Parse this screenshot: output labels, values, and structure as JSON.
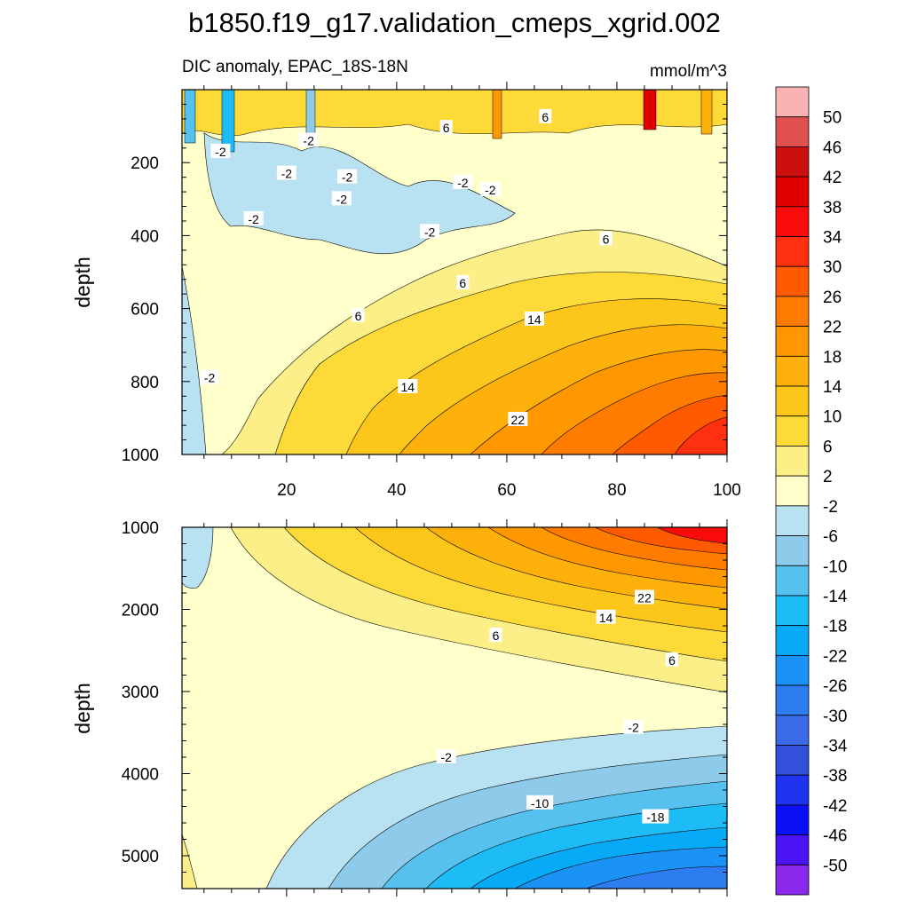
{
  "chart_data": {
    "type": "heatmap",
    "title": "b1850.f19_g17.validation_cmeps_xgrid.002",
    "colorbar": {
      "labels": [
        "50",
        "46",
        "42",
        "38",
        "34",
        "30",
        "26",
        "22",
        "18",
        "14",
        "10",
        "6",
        "2",
        "-2",
        "-6",
        "-10",
        "-14",
        "-18",
        "-22",
        "-26",
        "-30",
        "-34",
        "-38",
        "-42",
        "-46",
        "-50"
      ],
      "colors": [
        "#fbb2b2",
        "#e05050",
        "#cc1010",
        "#e00000",
        "#fa0c0c",
        "#ff3010",
        "#ff5a00",
        "#ff7c00",
        "#ff9800",
        "#fdb10a",
        "#fdc61a",
        "#fdda38",
        "#fdef88",
        "#ffffcc",
        "#b8e2f2",
        "#8ecbea",
        "#56c0ee",
        "#1ebcf6",
        "#06aaf6",
        "#1a92f6",
        "#2d7cf0",
        "#3a6ae6",
        "#3250dc",
        "#1f34ee",
        "#0c10f6",
        "#4a14f4",
        "#8a28ec"
      ],
      "placement": "right"
    },
    "panels": [
      {
        "name": "upper",
        "subtitle_left": "DIC anomaly, EPAC_18S-18N",
        "subtitle_right": "mmol/m^3",
        "ylabel": "depth",
        "xlim": [
          1,
          100
        ],
        "ylim": [
          0,
          1000
        ],
        "y_reversed": true,
        "xticks": [
          20,
          40,
          60,
          80,
          100
        ],
        "xtick_labels": [
          "20",
          "40",
          "60",
          "80",
          "100"
        ],
        "yticks": [
          200,
          400,
          600,
          800,
          1000
        ],
        "ytick_labels": [
          "200",
          "400",
          "600",
          "800",
          "1000"
        ],
        "contour_labels": [
          {
            "text": "-2",
            "x": 8,
            "y": 170
          },
          {
            "text": "-2",
            "x": 24,
            "y": 140
          },
          {
            "text": "-2",
            "x": 20,
            "y": 230
          },
          {
            "text": "-2",
            "x": 31,
            "y": 240
          },
          {
            "text": "-2",
            "x": 30,
            "y": 300
          },
          {
            "text": "-2",
            "x": 14,
            "y": 355
          },
          {
            "text": "-2",
            "x": 46,
            "y": 390
          },
          {
            "text": "-2",
            "x": 52,
            "y": 255
          },
          {
            "text": "-2",
            "x": 57,
            "y": 275
          },
          {
            "text": "6",
            "x": 49,
            "y": 105
          },
          {
            "text": "6",
            "x": 67,
            "y": 75
          },
          {
            "text": "6",
            "x": 78,
            "y": 410
          },
          {
            "text": "6",
            "x": 52,
            "y": 530
          },
          {
            "text": "6",
            "x": 33,
            "y": 620
          },
          {
            "text": "14",
            "x": 65,
            "y": 630
          },
          {
            "text": "14",
            "x": 42,
            "y": 815
          },
          {
            "text": "22",
            "x": 62,
            "y": 905
          },
          {
            "text": "-2",
            "x": 6,
            "y": 790
          }
        ]
      },
      {
        "name": "lower",
        "ylabel": "depth",
        "xlim": [
          1,
          100
        ],
        "ylim": [
          1000,
          5400
        ],
        "y_reversed": true,
        "yticks": [
          1000,
          2000,
          3000,
          4000,
          5000
        ],
        "ytick_labels": [
          "1000",
          "2000",
          "3000",
          "4000",
          "5000"
        ],
        "contour_labels": [
          {
            "text": "22",
            "x": 85,
            "y": 1860
          },
          {
            "text": "14",
            "x": 78,
            "y": 2100
          },
          {
            "text": "6",
            "x": 58,
            "y": 2320
          },
          {
            "text": "6",
            "x": 90,
            "y": 2620
          },
          {
            "text": "-2",
            "x": 83,
            "y": 3440
          },
          {
            "text": "-2",
            "x": 49,
            "y": 3800
          },
          {
            "text": "-10",
            "x": 66,
            "y": 4360
          },
          {
            "text": "-18",
            "x": 87,
            "y": 4530
          }
        ]
      }
    ]
  }
}
